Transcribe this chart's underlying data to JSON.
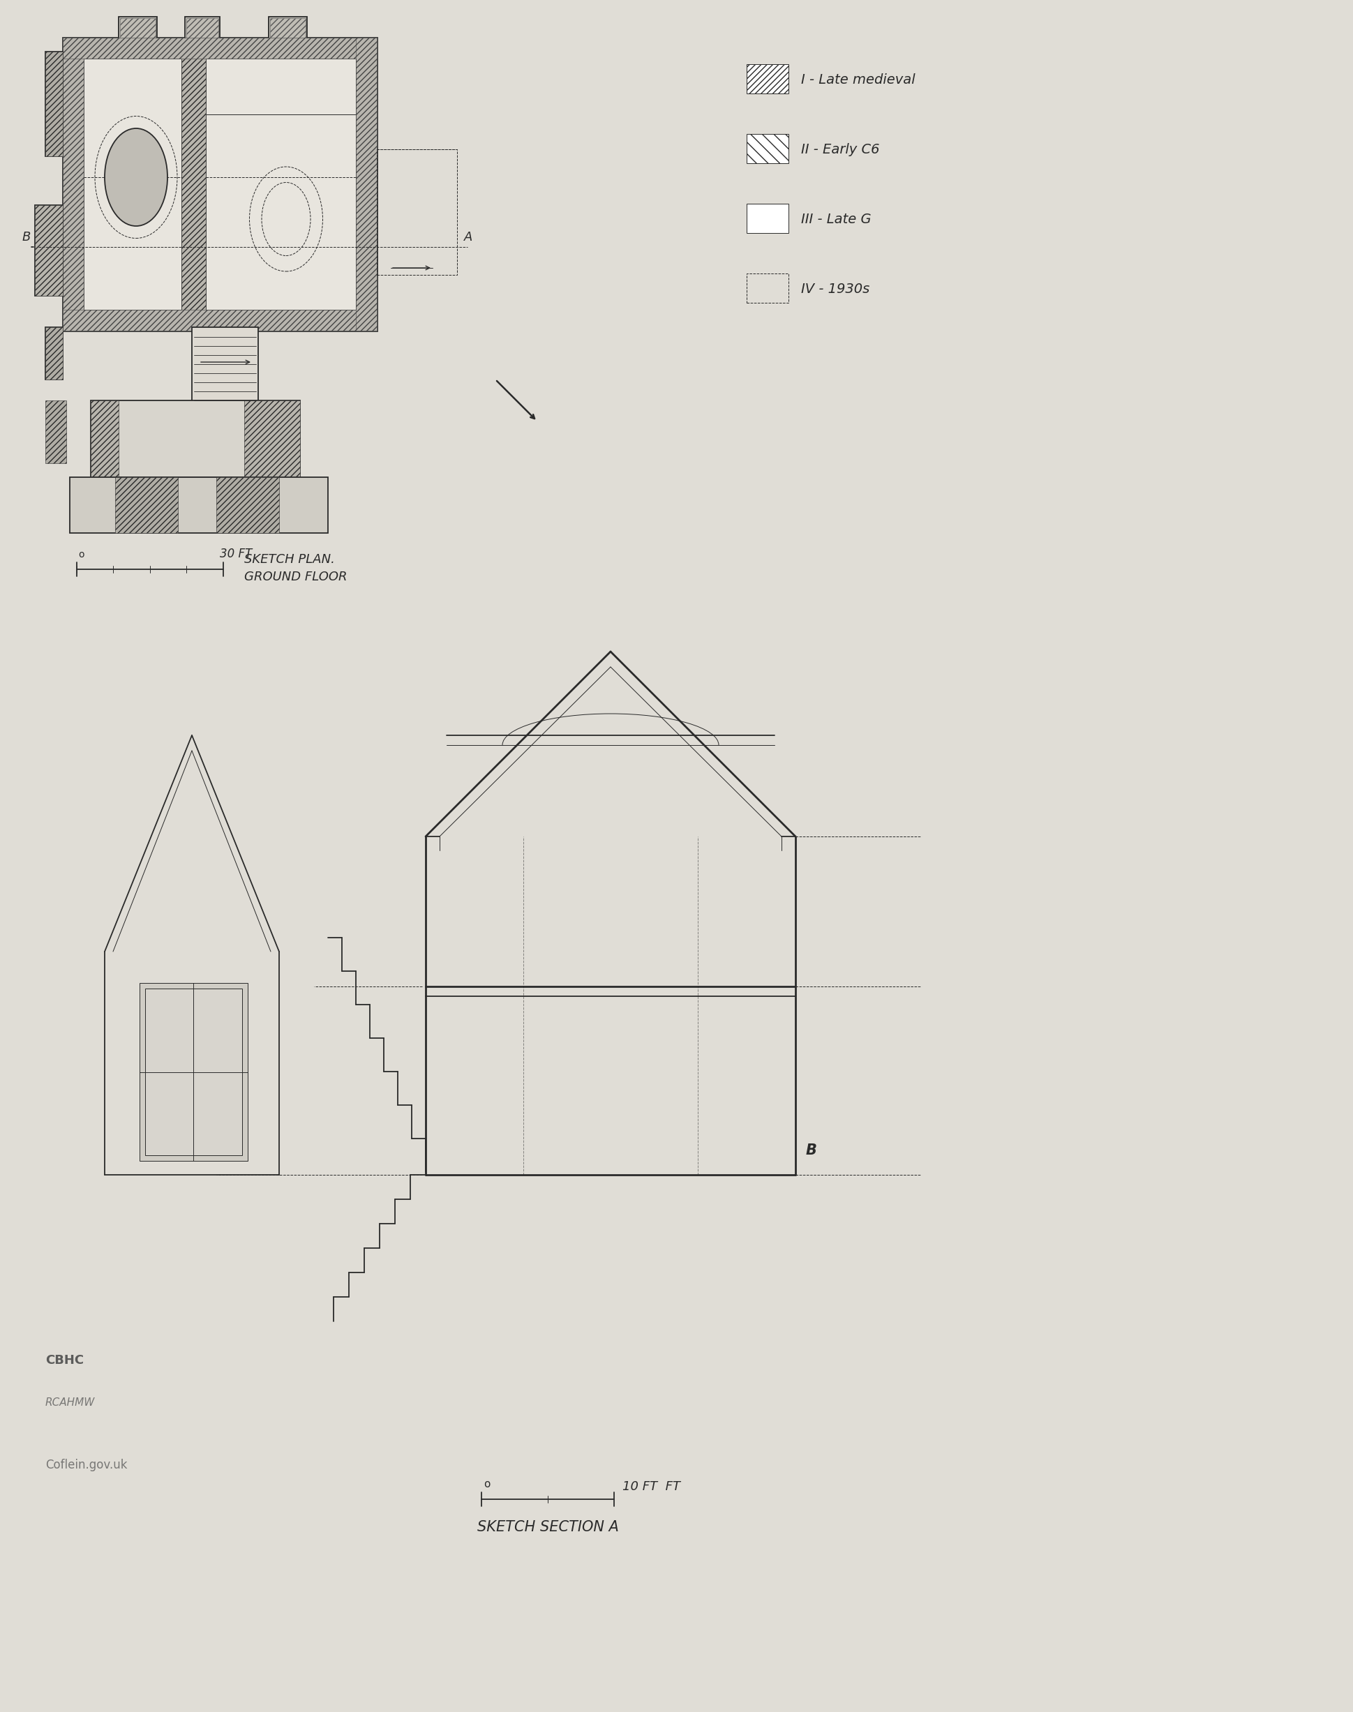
{
  "bg_color": "#e0ddd6",
  "line_color": "#2a2a2a",
  "legend_items": [
    {
      "label": "I - Late medieval",
      "hatch": "////"
    },
    {
      "label": "II - Early C6",
      "hatch": "\\\\"
    },
    {
      "label": "III - Late G",
      "hatch": ""
    },
    {
      "label": "IV - 1930s",
      "hatch": "dashed"
    }
  ],
  "scale_bar_plan": "30 FT",
  "scale_bar_section": "10 FT",
  "label_plan_line1": "SKETCH PLAN.",
  "label_plan_line2": "GROUND FLOOR",
  "label_section": "SKETCH SECTION A",
  "label_B_plan": "B",
  "label_A_plan": "A",
  "label_B_section": "B"
}
